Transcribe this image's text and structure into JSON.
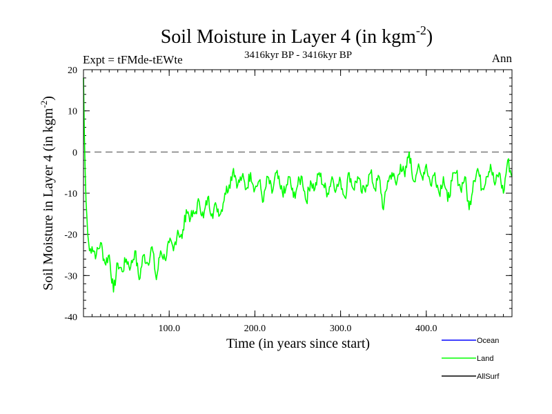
{
  "chart_data": {
    "type": "line",
    "title": "Soil Moisture in Layer 4 (in kgm",
    "title_sup": "-2",
    "title_end": ")",
    "expt_label": "Expt = tFMde-tEWte",
    "period_label": "3416kyr BP - 3416kyr BP",
    "season_label": "Ann",
    "xlabel": "Time (in years since start)",
    "ylabel": "Soil Moisture in Layer 4 (in kgm",
    "ylabel_sup": "-2",
    "ylabel_end": ")",
    "xlim": [
      0,
      500
    ],
    "ylim": [
      -40,
      20
    ],
    "x_ticks": [
      100,
      200,
      300,
      400
    ],
    "x_tick_labels": [
      "100.0",
      "200.0",
      "300.0",
      "400.0"
    ],
    "y_ticks": [
      -40,
      -30,
      -20,
      -10,
      0,
      10,
      20
    ],
    "y_tick_labels": [
      "-40",
      "-30",
      "-20",
      "-10",
      "0",
      "10",
      "20"
    ],
    "reference_line": 0,
    "legend": [
      {
        "name": "Ocean",
        "color": "#0000ff"
      },
      {
        "name": "Land",
        "color": "#00ff00"
      },
      {
        "name": "AllSurf",
        "color": "#000000"
      }
    ],
    "series": [
      {
        "name": "Land",
        "color": "#00ff00",
        "x": [
          0,
          1,
          2,
          3,
          5,
          7,
          10,
          15,
          20,
          25,
          30,
          35,
          40,
          45,
          50,
          55,
          60,
          65,
          70,
          75,
          80,
          85,
          90,
          95,
          100,
          105,
          110,
          115,
          120,
          125,
          130,
          135,
          140,
          145,
          150,
          155,
          160,
          165,
          170,
          175,
          180,
          185,
          190,
          195,
          200,
          205,
          210,
          215,
          220,
          225,
          230,
          235,
          240,
          245,
          250,
          255,
          260,
          265,
          270,
          275,
          280,
          285,
          290,
          295,
          300,
          305,
          310,
          315,
          320,
          325,
          330,
          335,
          340,
          345,
          350,
          355,
          360,
          365,
          370,
          375,
          380,
          385,
          390,
          395,
          400,
          405,
          410,
          415,
          420,
          425,
          430,
          435,
          440,
          445,
          450,
          455,
          460,
          465,
          470,
          475,
          480,
          485,
          490,
          495,
          500
        ],
        "values": [
          18,
          5,
          -5,
          -12,
          -20,
          -24,
          -23,
          -25,
          -22,
          -27,
          -25,
          -34,
          -27,
          -29,
          -26,
          -28,
          -24,
          -31,
          -25,
          -27,
          -23,
          -31,
          -24,
          -26,
          -22,
          -24,
          -19,
          -21,
          -14,
          -16,
          -15,
          -12,
          -16,
          -11,
          -15,
          -13,
          -15,
          -10,
          -8,
          -4,
          -8,
          -6,
          -9,
          -5,
          -9,
          -7,
          -12,
          -6,
          -10,
          -5,
          -9,
          -10,
          -6,
          -11,
          -8,
          -6,
          -12,
          -7,
          -9,
          -5,
          -8,
          -10,
          -6,
          -9,
          -7,
          -11,
          -5,
          -9,
          -6,
          -10,
          -8,
          -5,
          -9,
          -6,
          -14,
          -7,
          -5,
          -8,
          -3,
          -6,
          0,
          -7,
          -4,
          -6,
          -3,
          -8,
          -5,
          -10,
          -6,
          -12,
          -7,
          -5,
          -9,
          -6,
          -14,
          -7,
          -4,
          -9,
          -6,
          -3,
          -8,
          -5,
          -10,
          -2,
          -6
        ]
      }
    ]
  }
}
